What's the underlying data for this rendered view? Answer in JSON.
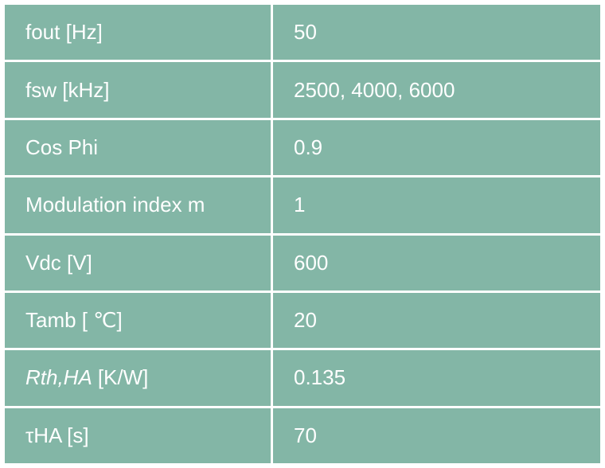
{
  "table": {
    "rows": [
      [
        "fout [Hz]",
        "50"
      ],
      [
        "fsw [kHz]",
        "2500, 4000, 6000"
      ],
      [
        "Cos Phi",
        "0.9"
      ],
      [
        "Modulation index m",
        "1"
      ],
      [
        "Vdc [V]",
        "600"
      ],
      [
        "Tamb [ ℃]",
        "20"
      ],
      [
        {
          "italic": "Rth,HA",
          "rest": "[K/W]"
        },
        "0.135"
      ],
      [
        "τHA [s]",
        "70"
      ]
    ]
  }
}
